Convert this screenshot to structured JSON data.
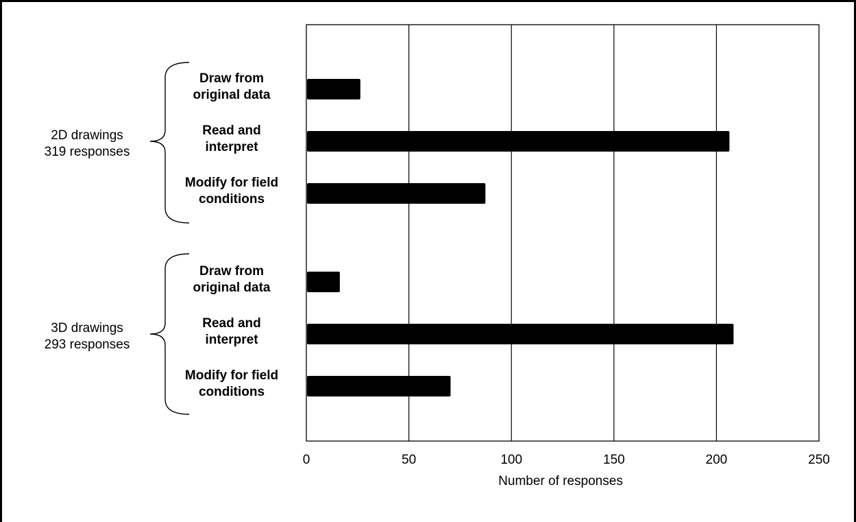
{
  "chart_data": {
    "type": "bar",
    "orientation": "horizontal",
    "title": "",
    "xlabel": "Number of responses",
    "ylabel": "",
    "xlim": [
      0,
      250
    ],
    "xticks": [
      0,
      50,
      100,
      150,
      200,
      250
    ],
    "grid": "vertical",
    "legend": "none",
    "bar_color": "#000000",
    "groups": [
      {
        "label": [
          "2D drawings",
          "319 responses"
        ],
        "bars": [
          {
            "label": [
              "Draw from",
              "original data"
            ],
            "value": 26
          },
          {
            "label": [
              "Read and",
              "interpret"
            ],
            "value": 206
          },
          {
            "label": [
              "Modify for field",
              "conditions"
            ],
            "value": 87
          }
        ]
      },
      {
        "label": [
          "3D drawings",
          "293 responses"
        ],
        "bars": [
          {
            "label": [
              "Draw from",
              "original data"
            ],
            "value": 16
          },
          {
            "label": [
              "Read and",
              "interpret"
            ],
            "value": 208
          },
          {
            "label": [
              "Modify for field",
              "conditions"
            ],
            "value": 70
          }
        ]
      }
    ]
  }
}
